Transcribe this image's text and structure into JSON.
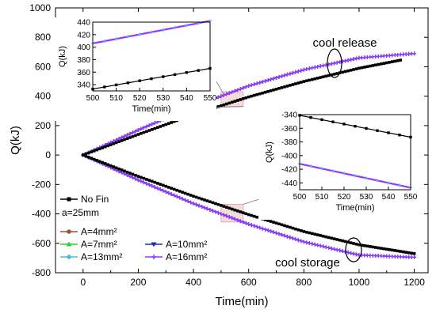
{
  "chart_data": [
    {
      "type": "line",
      "xlabel": "Time(min)",
      "ylabel": "Q(kJ)",
      "xlim": [
        -100,
        1250
      ],
      "ylim": [
        -800,
        1000
      ],
      "xticks": [
        "0",
        "200",
        "400",
        "600",
        "800",
        "1000",
        "1200"
      ],
      "yticks": [
        "-800",
        "-600",
        "-400",
        "-200",
        "0",
        "200",
        "400",
        "600",
        "800",
        "1000"
      ],
      "legend_position": "bottom-left",
      "legend_note": "a=25mm",
      "annotations": [
        "cool release",
        "cool storage"
      ],
      "series": [
        {
          "name": "No Fin",
          "color": "#000000",
          "marker": "square",
          "release_x": [
            0,
            200,
            400,
            600,
            800,
            1000,
            1150
          ],
          "release_y": [
            0,
            140,
            275,
            395,
            500,
            590,
            645
          ],
          "storage_x": [
            0,
            200,
            400,
            600,
            800,
            1000,
            1200
          ],
          "storage_y": [
            0,
            -145,
            -280,
            -405,
            -520,
            -610,
            -670
          ]
        },
        {
          "name": "A=4mm²",
          "color": "#a0522d",
          "marker": "circle",
          "release_x": [
            0,
            200,
            400,
            600,
            800,
            1000,
            1200
          ],
          "release_y": [
            0,
            170,
            330,
            470,
            580,
            660,
            690
          ],
          "storage_x": [
            0,
            200,
            400,
            600,
            800,
            1000,
            1200
          ],
          "storage_y": [
            0,
            -170,
            -330,
            -470,
            -590,
            -680,
            -695
          ]
        },
        {
          "name": "A=7mm²",
          "color": "#33cc33",
          "marker": "triangle",
          "release_x": [
            0,
            200,
            400,
            600,
            800,
            1000,
            1200
          ],
          "release_y": [
            0,
            170,
            330,
            470,
            580,
            660,
            690
          ],
          "storage_x": [
            0,
            200,
            400,
            600,
            800,
            1000,
            1200
          ],
          "storage_y": [
            0,
            -170,
            -330,
            -470,
            -590,
            -680,
            -695
          ]
        },
        {
          "name": "A=10mm²",
          "color": "#1f2fb0",
          "marker": "triangle-down",
          "release_x": [
            0,
            200,
            400,
            600,
            800,
            1000,
            1200
          ],
          "release_y": [
            0,
            170,
            330,
            470,
            580,
            660,
            690
          ],
          "storage_x": [
            0,
            200,
            400,
            600,
            800,
            1000,
            1200
          ],
          "storage_y": [
            0,
            -170,
            -330,
            -470,
            -590,
            -680,
            -695
          ]
        },
        {
          "name": "A=13mm²",
          "color": "#4db8e8",
          "marker": "diamond",
          "release_x": [
            0,
            200,
            400,
            600,
            800,
            1000,
            1200
          ],
          "release_y": [
            0,
            170,
            330,
            470,
            580,
            660,
            690
          ],
          "storage_x": [
            0,
            200,
            400,
            600,
            800,
            1000,
            1200
          ],
          "storage_y": [
            0,
            -170,
            -330,
            -470,
            -590,
            -680,
            -695
          ]
        },
        {
          "name": "A=16mm²",
          "color": "#9933ff",
          "marker": "star",
          "release_x": [
            0,
            200,
            400,
            600,
            800,
            1000,
            1200
          ],
          "release_y": [
            0,
            170,
            330,
            470,
            580,
            660,
            690
          ],
          "storage_x": [
            0,
            200,
            400,
            600,
            800,
            1000,
            1200
          ],
          "storage_y": [
            0,
            -170,
            -330,
            -470,
            -590,
            -680,
            -695
          ]
        }
      ]
    },
    {
      "type": "line",
      "xlabel": "Time(min)",
      "ylabel": "Q(kJ)",
      "xlim": [
        500,
        550
      ],
      "ylim": [
        330,
        440
      ],
      "xticks": [
        "500",
        "510",
        "520",
        "530",
        "540",
        "550"
      ],
      "yticks": [
        "340",
        "360",
        "380",
        "400",
        "420",
        "440"
      ],
      "series": [
        {
          "name": "No Fin",
          "color": "#000000",
          "x": [
            500,
            550
          ],
          "y": [
            333,
            366
          ]
        },
        {
          "name": "A=16mm²",
          "color": "#9933ff",
          "x": [
            500,
            550
          ],
          "y": [
            406,
            442
          ]
        }
      ]
    },
    {
      "type": "line",
      "xlabel": "Time(min)",
      "ylabel": "Q(kJ)",
      "xlim": [
        500,
        550
      ],
      "ylim": [
        -450,
        -340
      ],
      "xticks": [
        "500",
        "510",
        "520",
        "530",
        "540",
        "550"
      ],
      "yticks": [
        "-340",
        "-360",
        "-380",
        "-400",
        "-420",
        "-440"
      ],
      "series": [
        {
          "name": "No Fin",
          "color": "#000000",
          "x": [
            500,
            550
          ],
          "y": [
            -341,
            -373
          ]
        },
        {
          "name": "A=16mm²",
          "color": "#9933ff",
          "x": [
            500,
            550
          ],
          "y": [
            -412,
            -447
          ]
        }
      ]
    }
  ]
}
